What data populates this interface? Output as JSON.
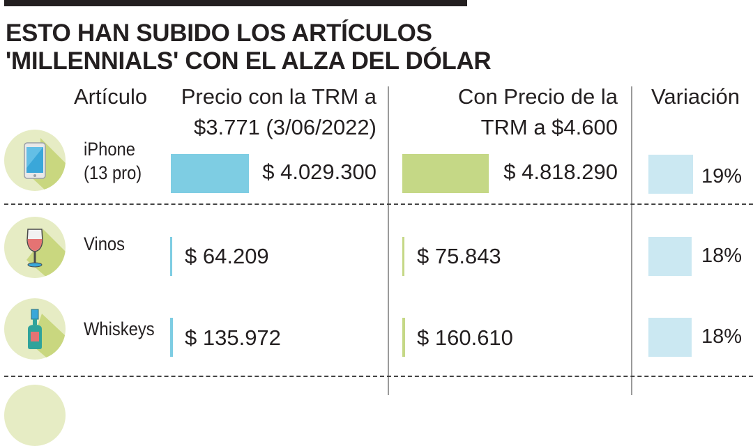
{
  "chart_data": {
    "type": "table",
    "title": "ESTO HAN SUBIDO LOS ARTÍCULOS 'MILLENNIALS' CON EL ALZA DEL DÓLAR",
    "title_lines": [
      "ESTO HAN SUBIDO LOS ARTÍCULOS",
      "'MILLENNIALS' CON EL ALZA DEL DÓLAR"
    ],
    "columns": {
      "item": "Artículo",
      "price_old": [
        "Precio con la TRM a",
        "$3.771 (3/06/2022)"
      ],
      "price_new": [
        "Con Precio de la",
        "TRM a $4.600"
      ],
      "variation": "Variación"
    },
    "rows": [
      {
        "name": [
          "iPhone",
          "(13 pro)"
        ],
        "icon": "smartphone-icon",
        "price_old": 4029300,
        "price_old_label": "$ 4.029.300",
        "price_new": 4818290,
        "price_new_label": "$ 4.818.290",
        "variation": 19,
        "variation_label": "19%"
      },
      {
        "name": [
          "Vinos"
        ],
        "icon": "wine-glass-icon",
        "price_old": 64209,
        "price_old_label": "$ 64.209",
        "price_new": 75843,
        "price_new_label": "$ 75.843",
        "variation": 18,
        "variation_label": "18%"
      },
      {
        "name": [
          "Whiskeys"
        ],
        "icon": "whiskey-bottle-icon",
        "price_old": 135972,
        "price_old_label": "$ 135.972",
        "price_new": 160610,
        "price_new_label": "$ 160.610",
        "variation": 18,
        "variation_label": "18%"
      }
    ],
    "colors": {
      "price_old": "#7ecde3",
      "price_new": "#c5d886",
      "variation": "#cbe8f2",
      "icon_bg": "#e6ecc4",
      "icon_shadow": "#c9d77f"
    }
  }
}
